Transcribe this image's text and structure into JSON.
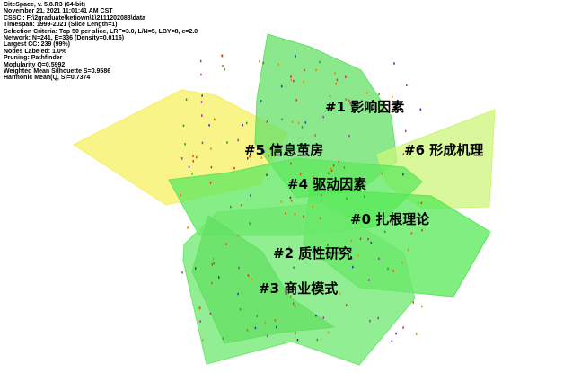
{
  "info": [
    "CiteSpace, v. 5.8.R3 (64-bit)",
    "November 21, 2021 11:01:41 AM CST",
    "CSSCI: F:\\2graduate\\ketiown\\1\\2111202083\\data",
    "Timespan: 1999-2021 (Slice Length=1)",
    "Selection Criteria: Top 50 per slice, LRF=3.0, L/N=5, LBY=8, e=2.0",
    "Network: N=241, E=336 (Density=0.0116)",
    "Largest CC: 239 (99%)",
    "Nodes Labeled: 1.0%",
    "Pruning: Pathfinder",
    "Modularity Q=0.5992",
    "Weighted Mean Silhouette S=0.9586",
    "Harmonic Mean(Q, S)=0.7374"
  ],
  "clusters": [
    {
      "id": "5",
      "label": "#5 信息茧房",
      "color": "#f5f060"
    },
    {
      "id": "1",
      "label": "#1 影响因素",
      "color": "#66e066"
    },
    {
      "id": "6",
      "label": "#6 形成机理",
      "color": "#ccf57a"
    },
    {
      "id": "4",
      "label": "#4 驱动因素",
      "color": "#5ee85e"
    },
    {
      "id": "0",
      "label": "#0 扎根理论",
      "color": "#55e855"
    },
    {
      "id": "2",
      "label": "#2 质性研究",
      "color": "#6ee86e"
    },
    {
      "id": "3",
      "label": "#3 商业模式",
      "color": "#62e062"
    }
  ]
}
